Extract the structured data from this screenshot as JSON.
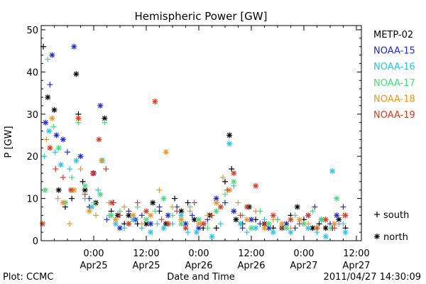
{
  "chart_data": {
    "type": "scatter",
    "title": "Hemispheric Power [GW]",
    "ylabel": "P [GW]",
    "xlabel": "Date and Time",
    "ylim": [
      0,
      51
    ],
    "yticks": [
      0,
      10,
      20,
      30,
      40,
      50
    ],
    "x_unit": "hours since 2011-04-24 12:00",
    "xlim": [
      0,
      70
    ],
    "xticks": [
      {
        "x": 12,
        "line1": "0:00",
        "line2": "Apr25"
      },
      {
        "x": 24,
        "line1": "12:00",
        "line2": "Apr25"
      },
      {
        "x": 36,
        "line1": "0:00",
        "line2": "Apr26"
      },
      {
        "x": 48,
        "line1": "12:00",
        "line2": "Apr26"
      },
      {
        "x": 60,
        "line1": "0:00",
        "line2": "Apr27"
      },
      {
        "x": 72,
        "line1": "12:00",
        "line2": "Apr27"
      }
    ],
    "legend_position": "right",
    "series": [
      {
        "name": "METP-02",
        "color": "#000000"
      },
      {
        "name": "NOAA-15",
        "color": "#1f2bd6"
      },
      {
        "name": "NOAA-16",
        "color": "#26c6e8"
      },
      {
        "name": "NOAA-17",
        "color": "#3fe07a"
      },
      {
        "name": "NOAA-18",
        "color": "#f0961e"
      },
      {
        "name": "NOAA-19",
        "color": "#e03a1c"
      }
    ],
    "marker_legend": [
      {
        "symbol": "+",
        "label": "south"
      },
      {
        "symbol": "*",
        "label": "north"
      }
    ],
    "points": [
      [
        0.5,
        46,
        0,
        "+"
      ],
      [
        1.5,
        34,
        0,
        "*"
      ],
      [
        3,
        31,
        0,
        "*"
      ],
      [
        4,
        12,
        0,
        "*"
      ],
      [
        5.5,
        8,
        0,
        "+"
      ],
      [
        7,
        10,
        0,
        "+"
      ],
      [
        8,
        39.5,
        0,
        "*"
      ],
      [
        8.5,
        30,
        0,
        "+"
      ],
      [
        9.5,
        14,
        0,
        "+"
      ],
      [
        10,
        12,
        0,
        "*"
      ],
      [
        11,
        8,
        0,
        "+"
      ],
      [
        12.5,
        9,
        0,
        "*"
      ],
      [
        14.5,
        29,
        0,
        "*"
      ],
      [
        16,
        7,
        0,
        "+"
      ],
      [
        17.5,
        6,
        0,
        "*"
      ],
      [
        19,
        4,
        0,
        "+"
      ],
      [
        20,
        6,
        0,
        "*"
      ],
      [
        22,
        4,
        0,
        "+"
      ],
      [
        24,
        4,
        0,
        "*"
      ],
      [
        25.5,
        9,
        0,
        "*"
      ],
      [
        27,
        7,
        0,
        "+"
      ],
      [
        28.5,
        4,
        0,
        "*"
      ],
      [
        30.5,
        10,
        0,
        "+"
      ],
      [
        32,
        7,
        0,
        "*"
      ],
      [
        33.5,
        9,
        0,
        "+"
      ],
      [
        35,
        5,
        0,
        "*"
      ],
      [
        37,
        3,
        0,
        "+"
      ],
      [
        38.5,
        6,
        0,
        "*"
      ],
      [
        40,
        3,
        0,
        "+"
      ],
      [
        42,
        14,
        0,
        "+"
      ],
      [
        43,
        25,
        0,
        "*"
      ],
      [
        43.5,
        17,
        0,
        "+"
      ],
      [
        44.5,
        5,
        0,
        "*"
      ],
      [
        46,
        4,
        0,
        "+"
      ],
      [
        47.5,
        8,
        0,
        "*"
      ],
      [
        49,
        5,
        0,
        "+"
      ],
      [
        51,
        4,
        0,
        "*"
      ],
      [
        53,
        3,
        0,
        "+"
      ],
      [
        55,
        3,
        0,
        "*"
      ],
      [
        57,
        6,
        0,
        "+"
      ],
      [
        58.5,
        8,
        0,
        "*"
      ],
      [
        60,
        5,
        0,
        "+"
      ],
      [
        62,
        3,
        0,
        "*"
      ],
      [
        63.5,
        4,
        0,
        "+"
      ],
      [
        65,
        3,
        0,
        "*"
      ],
      [
        66.5,
        3,
        0,
        "+"
      ],
      [
        68,
        5,
        0,
        "*"
      ],
      [
        69.5,
        3,
        0,
        "+"
      ],
      [
        1,
        28,
        1,
        "*"
      ],
      [
        2,
        37,
        1,
        "+"
      ],
      [
        2.5,
        44,
        1,
        "*"
      ],
      [
        3.5,
        25,
        1,
        "*"
      ],
      [
        5,
        24,
        1,
        "*"
      ],
      [
        6,
        21,
        1,
        "+"
      ],
      [
        7.5,
        46,
        1,
        "*"
      ],
      [
        9,
        20,
        1,
        "*"
      ],
      [
        11,
        10,
        1,
        "+"
      ],
      [
        12,
        16,
        1,
        "*"
      ],
      [
        13.5,
        32,
        1,
        "*"
      ],
      [
        15,
        5,
        1,
        "+"
      ],
      [
        16.5,
        9,
        1,
        "+"
      ],
      [
        18,
        3,
        1,
        "*"
      ],
      [
        20,
        7,
        1,
        "+"
      ],
      [
        21.5,
        5,
        1,
        "*"
      ],
      [
        23,
        6,
        1,
        "+"
      ],
      [
        25,
        4,
        1,
        "*"
      ],
      [
        27,
        8,
        1,
        "+"
      ],
      [
        29,
        6,
        1,
        "*"
      ],
      [
        31,
        8,
        1,
        "+"
      ],
      [
        33,
        4,
        1,
        "*"
      ],
      [
        34.5,
        6,
        1,
        "+"
      ],
      [
        36,
        3,
        1,
        "*"
      ],
      [
        38,
        5,
        1,
        "+"
      ],
      [
        40,
        10,
        1,
        "*"
      ],
      [
        42,
        9,
        1,
        "+"
      ],
      [
        44,
        7,
        1,
        "*"
      ],
      [
        46,
        3,
        1,
        "+"
      ],
      [
        48,
        5,
        1,
        "*"
      ],
      [
        50,
        4,
        1,
        "+"
      ],
      [
        52,
        3,
        1,
        "*"
      ],
      [
        54,
        5,
        1,
        "+"
      ],
      [
        56,
        4,
        1,
        "*"
      ],
      [
        58,
        3,
        1,
        "+"
      ],
      [
        61,
        6,
        1,
        "*"
      ],
      [
        62.5,
        8,
        1,
        "+"
      ],
      [
        64,
        5,
        1,
        "*"
      ],
      [
        66,
        4,
        1,
        "+"
      ],
      [
        67.5,
        6,
        1,
        "*"
      ],
      [
        69,
        8,
        1,
        "+"
      ],
      [
        0.7,
        20,
        2,
        "+"
      ],
      [
        1.8,
        26,
        2,
        "*"
      ],
      [
        3.2,
        21,
        2,
        "+"
      ],
      [
        4.5,
        18,
        2,
        "*"
      ],
      [
        6.5,
        17,
        2,
        "+"
      ],
      [
        8,
        19,
        2,
        "*"
      ],
      [
        10,
        10,
        2,
        "+"
      ],
      [
        11.5,
        8,
        2,
        "*"
      ],
      [
        13,
        12,
        2,
        "+"
      ],
      [
        14,
        19,
        2,
        "*"
      ],
      [
        15.5,
        6,
        2,
        "+"
      ],
      [
        17,
        4,
        2,
        "*"
      ],
      [
        19,
        3,
        2,
        "+"
      ],
      [
        21,
        5,
        2,
        "*"
      ],
      [
        23,
        3,
        2,
        "+"
      ],
      [
        25,
        2,
        2,
        "*"
      ],
      [
        26.5,
        4,
        2,
        "+"
      ],
      [
        28,
        3,
        2,
        "*"
      ],
      [
        30,
        4,
        2,
        "+"
      ],
      [
        32,
        6,
        2,
        "*"
      ],
      [
        33.5,
        2,
        2,
        "+"
      ],
      [
        35.5,
        2,
        2,
        "*"
      ],
      [
        37.5,
        4,
        2,
        "+"
      ],
      [
        39,
        1,
        2,
        "*"
      ],
      [
        41,
        4,
        2,
        "+"
      ],
      [
        43,
        23,
        2,
        "*"
      ],
      [
        44,
        13,
        2,
        "+"
      ],
      [
        45.5,
        4,
        2,
        "*"
      ],
      [
        47,
        2,
        2,
        "+"
      ],
      [
        49,
        3,
        2,
        "*"
      ],
      [
        51,
        5,
        2,
        "+"
      ],
      [
        53,
        2,
        2,
        "*"
      ],
      [
        55,
        3,
        2,
        "+"
      ],
      [
        57,
        2,
        2,
        "*"
      ],
      [
        59,
        4,
        2,
        "+"
      ],
      [
        61,
        3,
        2,
        "*"
      ],
      [
        63,
        2,
        2,
        "+"
      ],
      [
        65,
        1,
        2,
        "*"
      ],
      [
        66.5,
        16.5,
        2,
        "*"
      ],
      [
        68,
        4,
        2,
        "+"
      ],
      [
        69.5,
        2,
        2,
        "*"
      ],
      [
        0.9,
        12,
        3,
        "*"
      ],
      [
        1.5,
        43,
        3,
        "+"
      ],
      [
        2.8,
        27,
        3,
        "+"
      ],
      [
        4,
        22,
        3,
        "*"
      ],
      [
        5.5,
        9,
        3,
        "*"
      ],
      [
        7,
        15,
        3,
        "+"
      ],
      [
        8.5,
        28,
        3,
        "+"
      ],
      [
        10,
        13,
        3,
        "*"
      ],
      [
        12,
        9,
        3,
        "+"
      ],
      [
        13.5,
        11,
        3,
        "*"
      ],
      [
        14.5,
        28,
        3,
        "+"
      ],
      [
        16,
        6,
        3,
        "*"
      ],
      [
        18,
        7,
        3,
        "+"
      ],
      [
        20,
        4,
        3,
        "*"
      ],
      [
        22,
        8,
        3,
        "+"
      ],
      [
        24,
        5,
        3,
        "*"
      ],
      [
        26,
        7,
        3,
        "+"
      ],
      [
        28,
        10,
        3,
        "*"
      ],
      [
        30,
        6,
        3,
        "+"
      ],
      [
        32,
        4,
        3,
        "*"
      ],
      [
        34,
        8,
        3,
        "+"
      ],
      [
        36,
        5,
        3,
        "*"
      ],
      [
        38,
        3,
        3,
        "+"
      ],
      [
        40,
        7,
        3,
        "*"
      ],
      [
        42,
        11,
        3,
        "+"
      ],
      [
        44,
        14,
        3,
        "*"
      ],
      [
        46,
        6,
        3,
        "+"
      ],
      [
        48,
        3,
        3,
        "*"
      ],
      [
        50,
        7,
        3,
        "+"
      ],
      [
        52,
        4,
        3,
        "*"
      ],
      [
        54,
        5,
        3,
        "+"
      ],
      [
        56,
        3,
        3,
        "*"
      ],
      [
        58,
        6,
        3,
        "+"
      ],
      [
        60,
        4,
        3,
        "*"
      ],
      [
        62,
        7,
        3,
        "+"
      ],
      [
        64,
        5,
        3,
        "*"
      ],
      [
        66,
        3,
        3,
        "+"
      ],
      [
        67.5,
        10,
        3,
        "*"
      ],
      [
        69,
        4,
        3,
        "+"
      ],
      [
        1.2,
        24,
        4,
        "+"
      ],
      [
        2.5,
        29,
        4,
        "*"
      ],
      [
        3.8,
        10,
        4,
        "+"
      ],
      [
        5,
        9,
        4,
        "*"
      ],
      [
        6.5,
        4,
        4,
        "+"
      ],
      [
        7.5,
        12,
        4,
        "*"
      ],
      [
        9,
        17,
        4,
        "+"
      ],
      [
        11,
        7,
        4,
        "*"
      ],
      [
        12.5,
        6,
        4,
        "+"
      ],
      [
        13.8,
        19,
        4,
        "*"
      ],
      [
        15.5,
        9,
        4,
        "+"
      ],
      [
        17,
        5,
        4,
        "*"
      ],
      [
        19,
        8,
        4,
        "+"
      ],
      [
        21,
        6,
        4,
        "*"
      ],
      [
        23,
        4,
        4,
        "+"
      ],
      [
        25,
        6,
        4,
        "*"
      ],
      [
        27,
        12,
        4,
        "+"
      ],
      [
        28.5,
        21,
        4,
        "*"
      ],
      [
        30,
        8,
        4,
        "+"
      ],
      [
        32,
        5,
        4,
        "*"
      ],
      [
        34,
        7,
        4,
        "+"
      ],
      [
        36,
        4,
        4,
        "*"
      ],
      [
        38,
        6,
        4,
        "+"
      ],
      [
        40,
        9,
        4,
        "*"
      ],
      [
        41.5,
        15,
        4,
        "+"
      ],
      [
        43,
        12,
        4,
        "*"
      ],
      [
        45,
        9,
        4,
        "+"
      ],
      [
        47,
        5,
        4,
        "*"
      ],
      [
        49,
        7,
        4,
        "+"
      ],
      [
        51,
        3,
        4,
        "*"
      ],
      [
        53,
        5,
        4,
        "+"
      ],
      [
        55,
        4,
        4,
        "*"
      ],
      [
        57,
        3,
        4,
        "+"
      ],
      [
        59,
        5,
        4,
        "*"
      ],
      [
        61,
        4,
        4,
        "+"
      ],
      [
        63,
        3,
        4,
        "*"
      ],
      [
        65,
        5,
        4,
        "+"
      ],
      [
        67,
        4,
        4,
        "*"
      ],
      [
        69,
        6,
        4,
        "+"
      ],
      [
        0.3,
        4,
        5,
        "*"
      ],
      [
        2,
        22,
        5,
        "*"
      ],
      [
        3.3,
        17,
        5,
        "+"
      ],
      [
        5,
        15,
        5,
        "+"
      ],
      [
        6.8,
        12,
        5,
        "*"
      ],
      [
        8.5,
        29,
        5,
        "*"
      ],
      [
        10,
        11,
        5,
        "+"
      ],
      [
        11.8,
        16,
        5,
        "*"
      ],
      [
        13.2,
        24,
        5,
        "*"
      ],
      [
        14.8,
        17,
        5,
        "+"
      ],
      [
        16.2,
        9,
        5,
        "*"
      ],
      [
        18,
        6,
        5,
        "+"
      ],
      [
        20,
        4,
        5,
        "*"
      ],
      [
        22,
        9,
        5,
        "+"
      ],
      [
        24,
        7,
        5,
        "*"
      ],
      [
        26,
        33,
        5,
        "*"
      ],
      [
        27.5,
        5,
        5,
        "+"
      ],
      [
        29,
        4,
        5,
        "*"
      ],
      [
        31,
        7,
        5,
        "+"
      ],
      [
        33,
        3,
        5,
        "*"
      ],
      [
        35,
        9,
        5,
        "+"
      ],
      [
        37,
        4,
        5,
        "*"
      ],
      [
        39,
        6,
        5,
        "+"
      ],
      [
        41,
        8,
        5,
        "*"
      ],
      [
        42.5,
        12,
        5,
        "+"
      ],
      [
        44,
        16,
        5,
        "*"
      ],
      [
        45.5,
        6,
        5,
        "+"
      ],
      [
        47,
        8,
        5,
        "*"
      ],
      [
        49,
        13,
        5,
        "*"
      ],
      [
        51,
        4,
        5,
        "+"
      ],
      [
        53,
        6,
        5,
        "*"
      ],
      [
        55,
        3,
        5,
        "+"
      ],
      [
        57,
        5,
        5,
        "*"
      ],
      [
        59,
        4,
        5,
        "+"
      ],
      [
        61,
        6,
        5,
        "*"
      ],
      [
        63,
        3,
        5,
        "+"
      ],
      [
        65,
        5,
        5,
        "*"
      ],
      [
        67,
        3,
        5,
        "+"
      ],
      [
        69.5,
        6,
        5,
        "*"
      ]
    ]
  },
  "footer": {
    "left": "Plot: CCMC",
    "right": "2011/04/27 14:30:09"
  }
}
